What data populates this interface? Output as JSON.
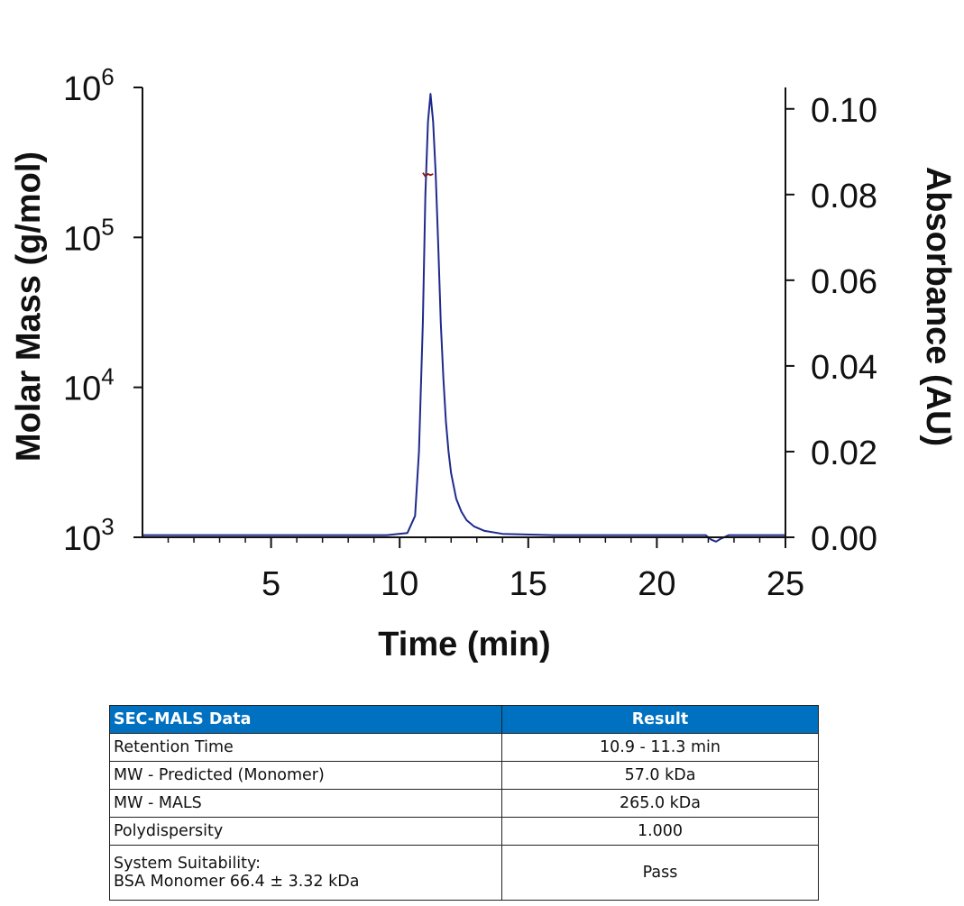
{
  "chart_data": {
    "type": "line",
    "xlabel": "Time (min)",
    "ylabel_left": "Molar Mass (g/mol)",
    "ylabel_right": "Absorbance (AU)",
    "x_ticks": [
      "5",
      "10",
      "15",
      "20",
      "25"
    ],
    "x_tick_values": [
      5,
      10,
      15,
      20,
      25
    ],
    "y_left_ticks": [
      {
        "base": "10",
        "exp": "6",
        "value": 1000000
      },
      {
        "base": "10",
        "exp": "5",
        "value": 100000
      },
      {
        "base": "10",
        "exp": "4",
        "value": 10000
      },
      {
        "base": "10",
        "exp": "3",
        "value": 1000
      }
    ],
    "y_right_ticks": [
      "0.10",
      "0.08",
      "0.06",
      "0.04",
      "0.02",
      "0.00"
    ],
    "y_right_tick_values": [
      0.1,
      0.08,
      0.06,
      0.04,
      0.02,
      0.0
    ],
    "xlim": [
      0,
      25
    ],
    "ylim_left": [
      1000,
      1000000
    ],
    "ylim_left_scale": "log",
    "ylim_right": [
      0,
      0.105
    ],
    "series": [
      {
        "axis": "right",
        "color": "#1f2a8c",
        "x": [
          0.0,
          5.0,
          9.5,
          10.3,
          10.6,
          10.75,
          10.9,
          11.0,
          11.1,
          11.2,
          11.3,
          11.4,
          11.5,
          11.6,
          11.7,
          11.8,
          11.9,
          12.0,
          12.2,
          12.4,
          12.6,
          12.9,
          13.3,
          14.0,
          16.0,
          20.0,
          21.9,
          22.1,
          22.3,
          22.5,
          22.8,
          25.0
        ],
        "y": [
          0.0005,
          0.0005,
          0.0005,
          0.001,
          0.005,
          0.02,
          0.05,
          0.08,
          0.097,
          0.1035,
          0.097,
          0.085,
          0.068,
          0.05,
          0.037,
          0.027,
          0.02,
          0.015,
          0.009,
          0.006,
          0.004,
          0.0025,
          0.0015,
          0.0008,
          0.0005,
          0.0005,
          0.0005,
          -0.0005,
          -0.001,
          -0.0003,
          0.0005,
          0.0005
        ]
      },
      {
        "axis": "left",
        "color": "#8b1a1a",
        "x": [
          10.9,
          11.0,
          11.1,
          11.2,
          11.3
        ],
        "y": [
          270000,
          255000,
          265000,
          260000,
          265000
        ]
      }
    ]
  },
  "table": {
    "header": {
      "col1": "SEC-MALS Data",
      "col2": "Result"
    },
    "rows": [
      {
        "label": "Retention Time",
        "value": "10.9 - 11.3 min"
      },
      {
        "label": "MW - Predicted (Monomer)",
        "value": "57.0 kDa"
      },
      {
        "label": "MW - MALS",
        "value": "265.0 kDa"
      },
      {
        "label": "Polydispersity",
        "value": "1.000"
      }
    ],
    "last_row": {
      "label_line1": "System Suitability:",
      "label_line2": "BSA Monomer 66.4 ± 3.32 kDa",
      "value": "Pass"
    },
    "header_color": "#0070c0"
  }
}
